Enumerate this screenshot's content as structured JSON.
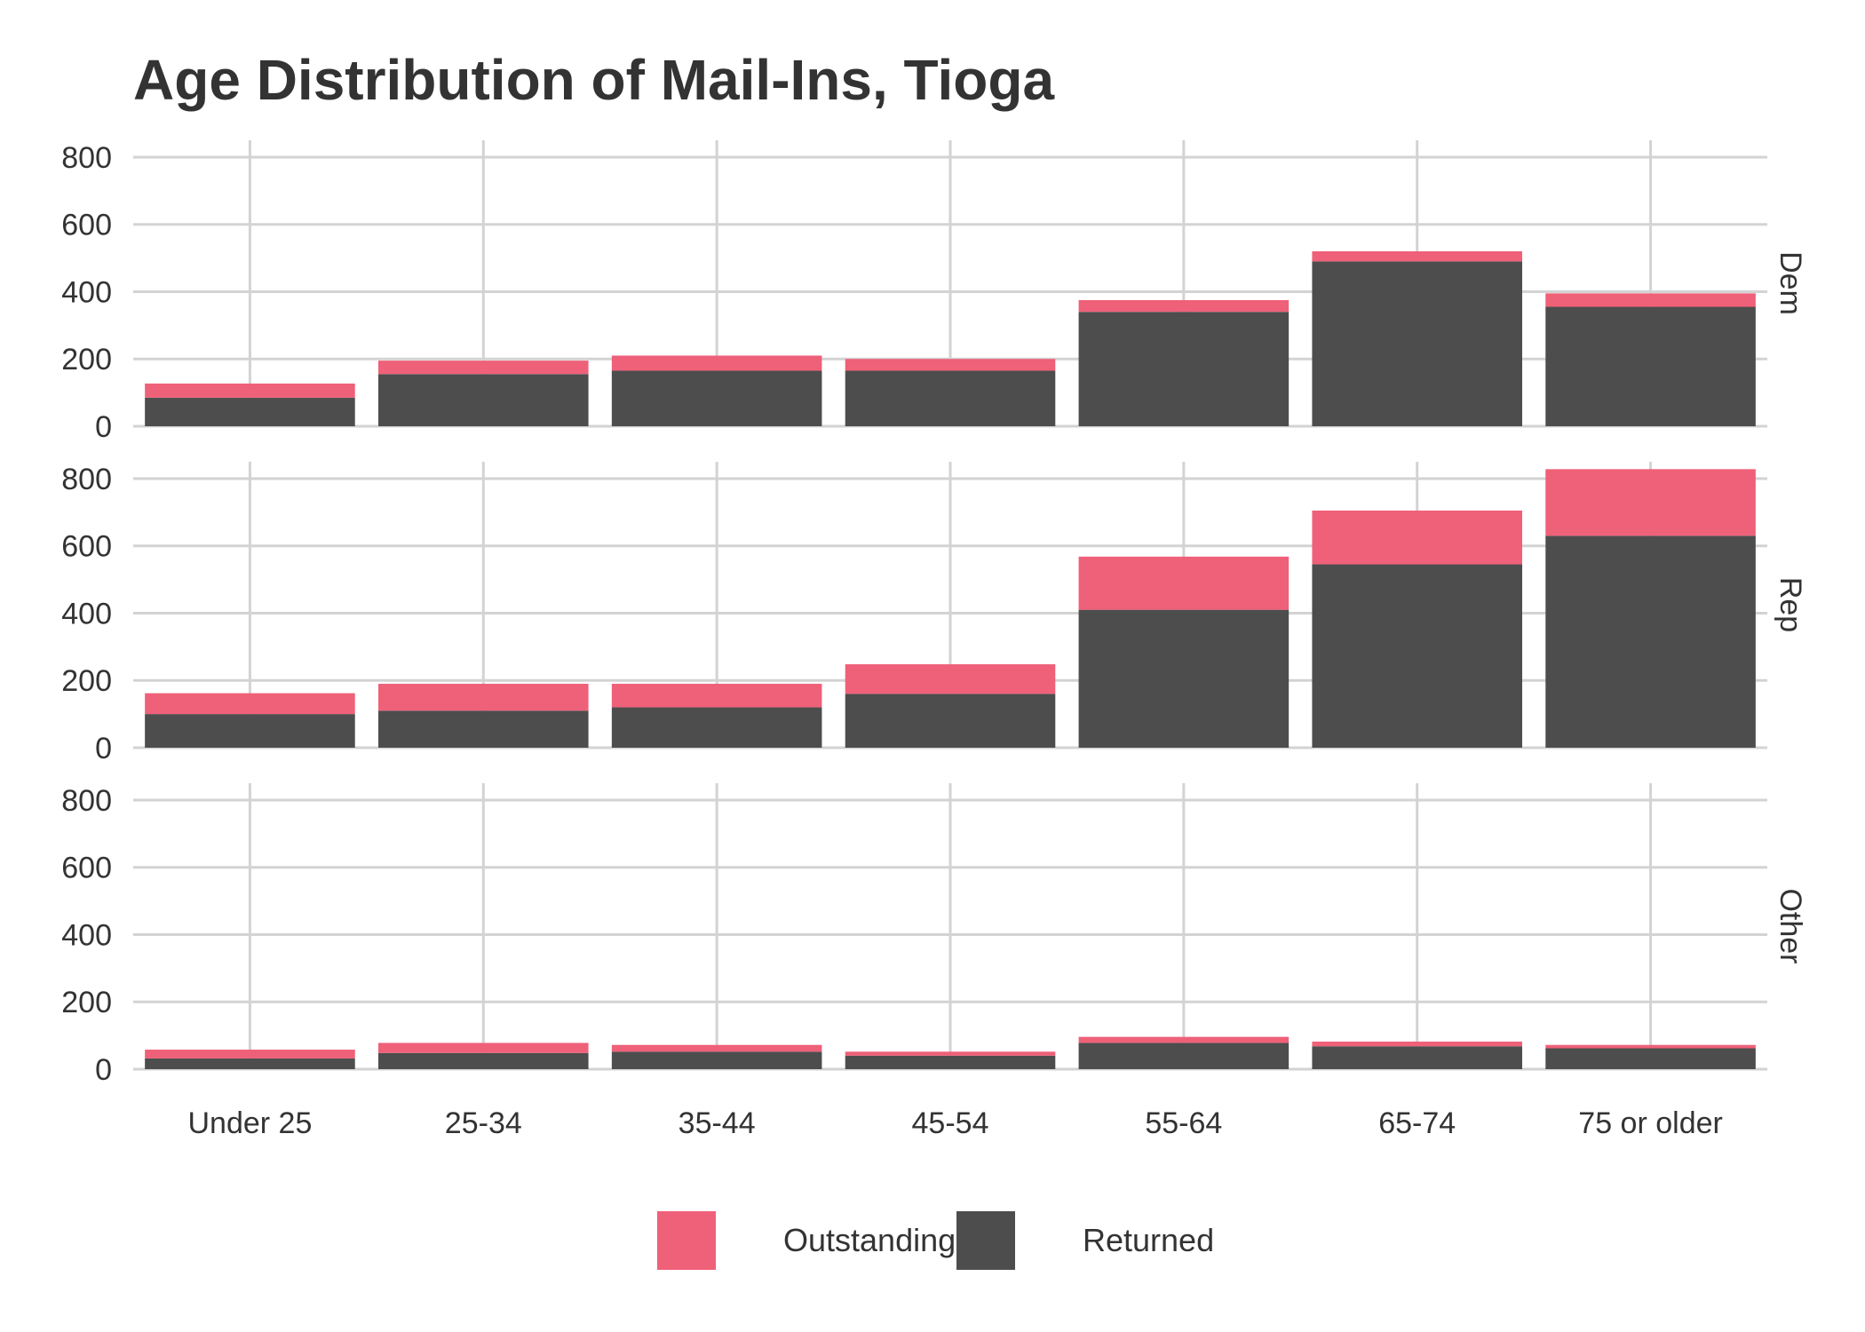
{
  "chart_data": {
    "type": "bar",
    "stacked": true,
    "title": "Age Distribution of Mail-Ins, Tioga",
    "xlabel": "",
    "ylabel": "",
    "ylim": [
      0,
      850
    ],
    "yticks": [
      0,
      200,
      400,
      600,
      800
    ],
    "categories": [
      "Under 25",
      "25-34",
      "35-44",
      "45-54",
      "55-64",
      "65-74",
      "75 or older"
    ],
    "grid": true,
    "legend_position": "bottom",
    "legend": [
      {
        "name": "Outstanding",
        "color": "#ef6079"
      },
      {
        "name": "Returned",
        "color": "#4d4d4d"
      }
    ],
    "facets": [
      {
        "name": "Dem",
        "series": [
          {
            "name": "Returned",
            "values": [
              85,
              155,
              165,
              165,
              340,
              490,
              355
            ]
          },
          {
            "name": "Outstanding",
            "values": [
              42,
              40,
              45,
              35,
              35,
              30,
              40
            ]
          }
        ]
      },
      {
        "name": "Rep",
        "series": [
          {
            "name": "Returned",
            "values": [
              100,
              110,
              120,
              160,
              410,
              545,
              630
            ]
          },
          {
            "name": "Outstanding",
            "values": [
              62,
              80,
              70,
              88,
              158,
              160,
              198
            ]
          }
        ]
      },
      {
        "name": "Other",
        "series": [
          {
            "name": "Returned",
            "values": [
              32,
              48,
              52,
              40,
              78,
              68,
              62
            ]
          },
          {
            "name": "Outstanding",
            "values": [
              26,
              30,
              20,
              12,
              18,
              14,
              10
            ]
          }
        ]
      }
    ]
  }
}
